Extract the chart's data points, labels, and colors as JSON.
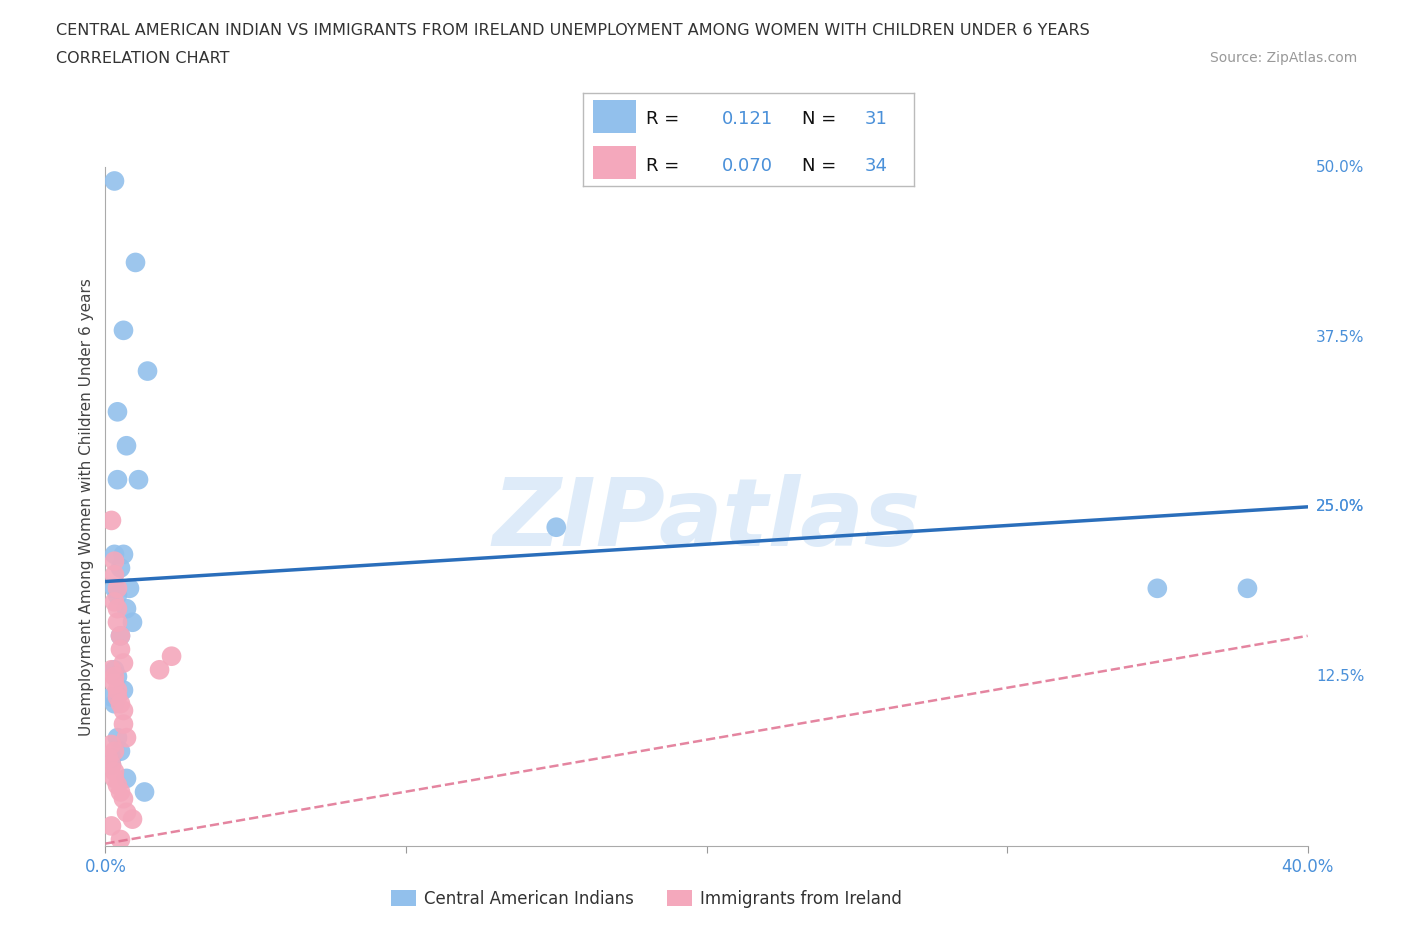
{
  "title_line1": "CENTRAL AMERICAN INDIAN VS IMMIGRANTS FROM IRELAND UNEMPLOYMENT AMONG WOMEN WITH CHILDREN UNDER 6 YEARS",
  "title_line2": "CORRELATION CHART",
  "source_text": "Source: ZipAtlas.com",
  "watermark": "ZIPatlas",
  "ylabel": "Unemployment Among Women with Children Under 6 years",
  "xlim": [
    0.0,
    0.4
  ],
  "ylim": [
    0.0,
    0.5
  ],
  "ytick_labels_right": [
    "12.5%",
    "25.0%",
    "37.5%",
    "50.0%"
  ],
  "yticks_right": [
    0.125,
    0.25,
    0.375,
    0.5
  ],
  "blue_R": 0.121,
  "blue_N": 31,
  "pink_R": 0.07,
  "pink_N": 34,
  "blue_color": "#92C0EC",
  "pink_color": "#F4A8BC",
  "blue_line_color": "#2A6EBB",
  "pink_line_color": "#E07090",
  "axis_label_color": "#4A90D9",
  "grid_color": "#CCCCCC",
  "background_color": "#FFFFFF",
  "blue_x": [
    0.003,
    0.01,
    0.006,
    0.004,
    0.007,
    0.011,
    0.014,
    0.004,
    0.003,
    0.005,
    0.008,
    0.006,
    0.004,
    0.007,
    0.009,
    0.003,
    0.005,
    0.003,
    0.004,
    0.006,
    0.002,
    0.003,
    0.004,
    0.005,
    0.002,
    0.15,
    0.35,
    0.38,
    0.007,
    0.013,
    0.002
  ],
  "blue_y": [
    0.49,
    0.43,
    0.38,
    0.32,
    0.295,
    0.27,
    0.35,
    0.27,
    0.215,
    0.205,
    0.19,
    0.215,
    0.185,
    0.175,
    0.165,
    0.19,
    0.155,
    0.13,
    0.125,
    0.115,
    0.11,
    0.105,
    0.08,
    0.07,
    0.06,
    0.235,
    0.19,
    0.19,
    0.05,
    0.04,
    0.065
  ],
  "pink_x": [
    0.002,
    0.003,
    0.003,
    0.004,
    0.003,
    0.004,
    0.004,
    0.005,
    0.005,
    0.006,
    0.002,
    0.003,
    0.003,
    0.004,
    0.004,
    0.005,
    0.006,
    0.006,
    0.007,
    0.002,
    0.003,
    0.001,
    0.002,
    0.003,
    0.003,
    0.004,
    0.005,
    0.006,
    0.007,
    0.009,
    0.018,
    0.022,
    0.002,
    0.005
  ],
  "pink_y": [
    0.24,
    0.21,
    0.2,
    0.19,
    0.18,
    0.175,
    0.165,
    0.155,
    0.145,
    0.135,
    0.13,
    0.125,
    0.12,
    0.115,
    0.11,
    0.105,
    0.1,
    0.09,
    0.08,
    0.075,
    0.07,
    0.065,
    0.06,
    0.055,
    0.05,
    0.045,
    0.04,
    0.035,
    0.025,
    0.02,
    0.13,
    0.14,
    0.015,
    0.005
  ],
  "bottom_legend_blue_label": "Central American Indians",
  "bottom_legend_pink_label": "Immigrants from Ireland",
  "blue_line_y_at_xlim_start": 0.195,
  "blue_line_y_at_xlim_end": 0.25,
  "pink_line_y_at_xlim_start": 0.002,
  "pink_line_y_at_xlim_end": 0.155
}
